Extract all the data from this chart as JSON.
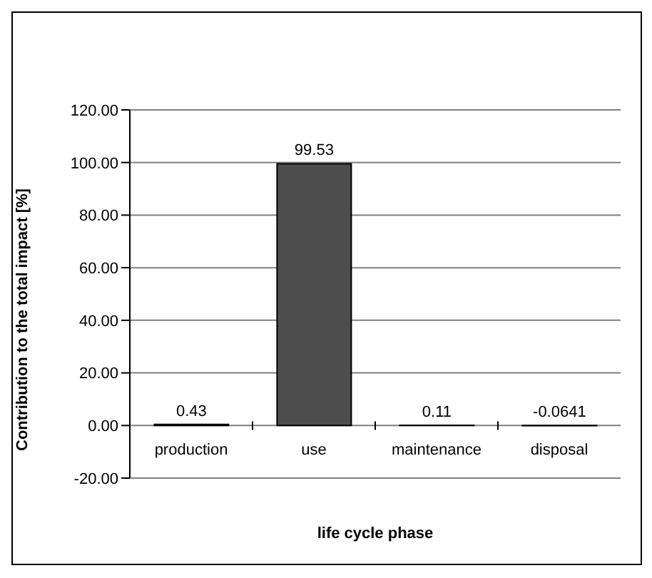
{
  "chart_data": {
    "type": "bar",
    "xlabel": "life cycle phase",
    "ylabel": "Contribution to the total impact [%]",
    "categories": [
      "production",
      "use",
      "maintenance",
      "disposal"
    ],
    "values": [
      0.43,
      99.53,
      0.11,
      -0.0641
    ],
    "value_labels": [
      "0.43",
      "99.53",
      "0.11",
      "-0.0641"
    ],
    "color": "#4d4d4d",
    "ylim": [
      -20,
      120
    ],
    "yticks": [
      {
        "value": -20,
        "label": "-20.00"
      },
      {
        "value": 0,
        "label": "0.00"
      },
      {
        "value": 20,
        "label": "20.00"
      },
      {
        "value": 40,
        "label": "40.00"
      },
      {
        "value": 60,
        "label": "60.00"
      },
      {
        "value": 80,
        "label": "80.00"
      },
      {
        "value": 100,
        "label": "100.00"
      },
      {
        "value": 120,
        "label": "120.00"
      }
    ],
    "grid": "y",
    "legend": false
  }
}
